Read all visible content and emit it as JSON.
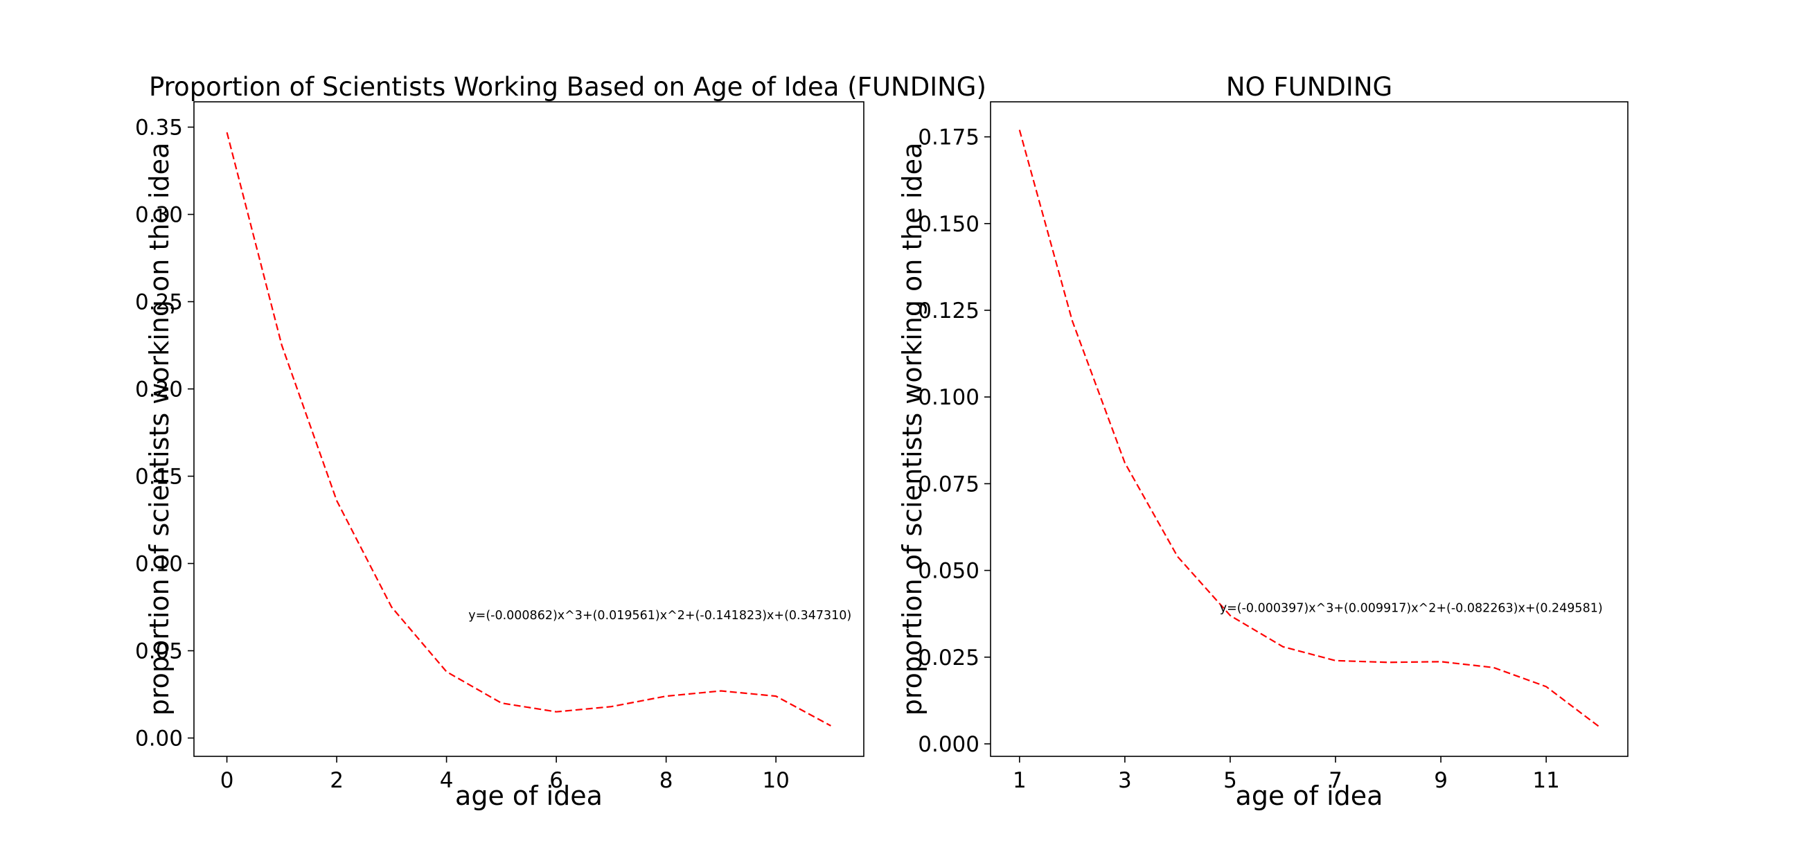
{
  "chart_data": [
    {
      "type": "line",
      "title": "Proportion of Scientists Working Based on Age of Idea (FUNDING)",
      "xlabel": "age of idea",
      "ylabel": "proportion of scientists working on the idea",
      "xlim": [
        -0.6,
        11.6
      ],
      "ylim": [
        -0.0105,
        0.3645
      ],
      "xticks": [
        0,
        2,
        4,
        6,
        8,
        10
      ],
      "xtick_labels": [
        "0",
        "2",
        "4",
        "6",
        "8",
        "10"
      ],
      "yticks": [
        0.0,
        0.05,
        0.1,
        0.15,
        0.2,
        0.25,
        0.3,
        0.35
      ],
      "ytick_labels": [
        "0.00",
        "0.05",
        "0.10",
        "0.15",
        "0.20",
        "0.25",
        "0.30",
        "0.35"
      ],
      "series": [
        {
          "color": "#ff0000",
          "line_style": "dashed",
          "x": [
            0,
            1,
            2,
            3,
            4,
            5,
            6,
            7,
            8,
            9,
            10,
            11
          ],
          "values": [
            0.347,
            0.225,
            0.136,
            0.075,
            0.038,
            0.02,
            0.015,
            0.018,
            0.024,
            0.027,
            0.024,
            0.007
          ]
        }
      ],
      "annotations": [
        {
          "text": "y=(-0.000862)x^3+(0.019561)x^2+(-0.141823)x+(0.347310)",
          "x": 4.4,
          "y": 0.068
        }
      ],
      "grid": false
    },
    {
      "type": "line",
      "title": "NO FUNDING",
      "xlabel": "age of idea",
      "ylabel": "proportion of scientists working on the idea",
      "xlim": [
        0.45,
        12.55
      ],
      "ylim": [
        -0.0036,
        0.1851
      ],
      "xticks": [
        1,
        3,
        5,
        7,
        9,
        11
      ],
      "xtick_labels": [
        "1",
        "3",
        "5",
        "7",
        "9",
        "11"
      ],
      "yticks": [
        0.0,
        0.025,
        0.05,
        0.075,
        0.1,
        0.125,
        0.15,
        0.175
      ],
      "ytick_labels": [
        "0.000",
        "0.025",
        "0.050",
        "0.075",
        "0.100",
        "0.125",
        "0.150",
        "0.175"
      ],
      "series": [
        {
          "color": "#ff0000",
          "line_style": "dashed",
          "x": [
            1,
            2,
            3,
            4,
            5,
            6,
            7,
            8,
            9,
            10,
            11,
            12
          ],
          "values": [
            0.177,
            0.122,
            0.081,
            0.054,
            0.037,
            0.028,
            0.024,
            0.0235,
            0.0237,
            0.022,
            0.0165,
            0.005
          ]
        }
      ],
      "annotations": [
        {
          "text": "y=(-0.000397)x^3+(0.009917)x^2+(-0.082263)x+(0.249581)",
          "x": 4.8,
          "y": 0.038
        }
      ],
      "grid": false
    }
  ]
}
